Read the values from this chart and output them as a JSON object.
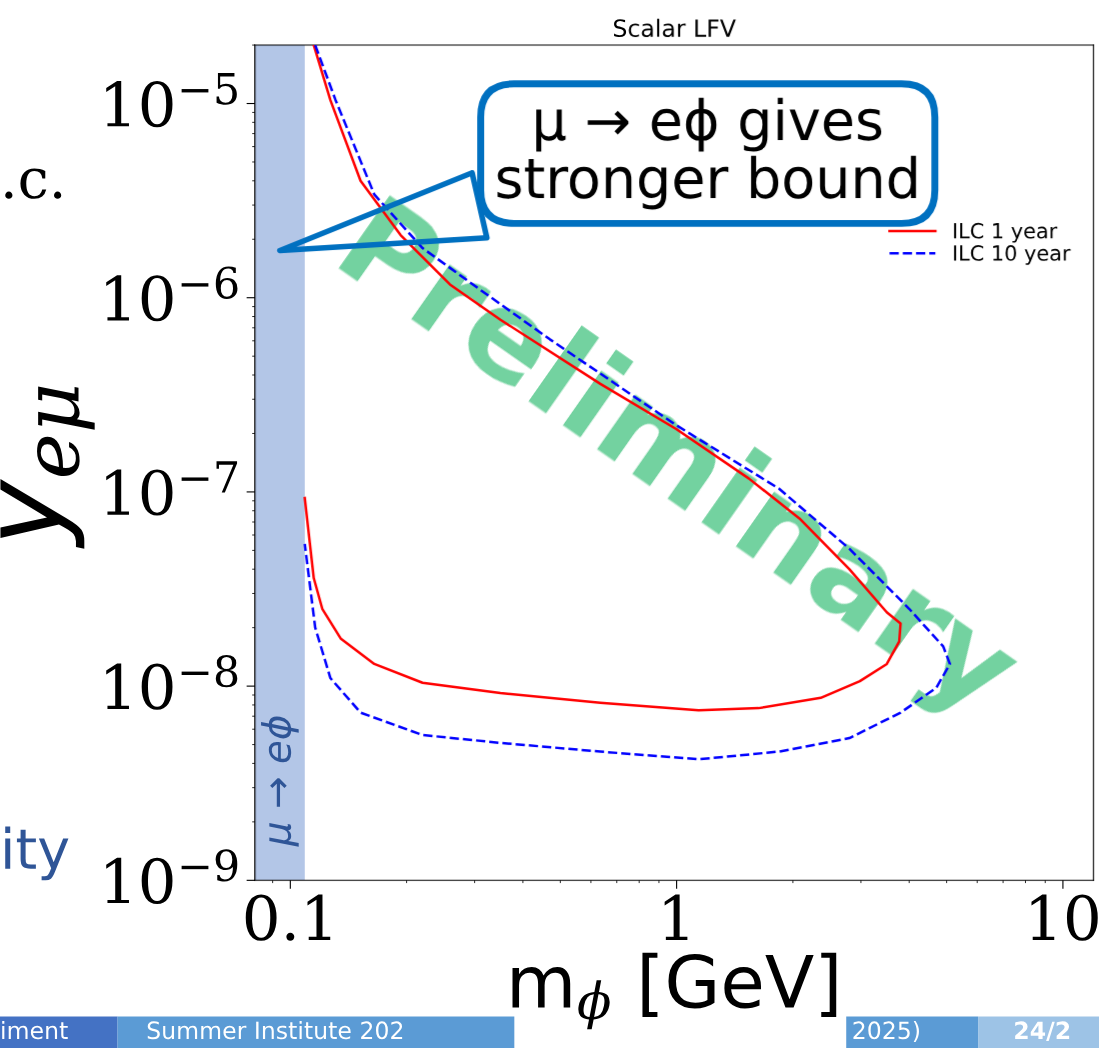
{
  "chart_data": {
    "type": "line",
    "title": "Scalar LFV",
    "xlabel": "m$_{ϕ}$ [GeV]",
    "ylabel": "y$_{eμ}$",
    "log": "xy",
    "xlim": [
      0.081,
      12
    ],
    "ylim": [
      1e-09,
      2e-05
    ],
    "xticks": [
      0.1,
      1,
      10
    ],
    "yticks": [
      {
        "value": 1e-09,
        "label": "10$^{−9}$"
      },
      {
        "value": 1e-08,
        "label": "10$^{−8}$"
      },
      {
        "value": 1e-07,
        "label": "10$^{−7}$"
      },
      {
        "value": 1e-06,
        "label": "10$^{−6}$"
      },
      {
        "value": 1e-05,
        "label": "10$^{−5}$"
      }
    ],
    "grid": false,
    "legend": "top right",
    "bands": [
      {
        "axis": "x",
        "from": 0.081,
        "to": 0.109,
        "label": "μ → eϕ",
        "color": "#b3c6e7"
      }
    ],
    "series": [
      {
        "name": "ILC 1 year",
        "color": "#ff0000",
        "line_style": "solid",
        "x": [
          0.115,
          0.127,
          0.152,
          0.193,
          0.259,
          0.35,
          0.635,
          1.0,
          1.54,
          2.08,
          2.8,
          3.5,
          3.8,
          3.77,
          3.5,
          2.98,
          2.36,
          1.63,
          1.14,
          0.635,
          0.35,
          0.22,
          0.165,
          0.135,
          0.121,
          0.115,
          0.109
        ],
        "values": [
          2e-05,
          1.04e-05,
          4e-06,
          2.1e-06,
          1.17e-06,
          7.7e-07,
          3.6e-07,
          2.1e-07,
          1.17e-07,
          7.3e-08,
          4e-08,
          2.4e-08,
          2.1e-08,
          1.7e-08,
          1.3e-08,
          1.06e-08,
          8.7e-09,
          7.7e-09,
          7.5e-09,
          8.2e-09,
          9.2e-09,
          1.04e-08,
          1.3e-08,
          1.76e-08,
          2.5e-08,
          3.6e-08,
          9.3e-08
        ]
      },
      {
        "name": "ILC 10 year",
        "color": "#0000ff",
        "line_style": "dashed",
        "x": [
          0.116,
          0.131,
          0.165,
          0.22,
          0.31,
          0.47,
          1.0,
          1.84,
          2.8,
          4.0,
          4.9,
          5.1,
          4.7,
          3.8,
          2.8,
          1.84,
          1.14,
          0.635,
          0.35,
          0.22,
          0.152,
          0.127,
          0.116,
          0.109
        ],
        "values": [
          2e-05,
          1.04e-05,
          3.4e-06,
          1.8e-06,
          1.1e-06,
          6.1e-07,
          2.2e-07,
          1.04e-07,
          5.1e-08,
          2.5e-08,
          1.6e-08,
          1.3e-08,
          9.8e-09,
          7.3e-09,
          5.4e-09,
          4.6e-09,
          4.2e-09,
          4.6e-09,
          5.1e-09,
          5.6e-09,
          7.3e-09,
          1.1e-08,
          2e-08,
          5.4e-08
        ]
      }
    ],
    "annotations": [
      "μ → eϕ gives\nstronger bound",
      "Preliminary",
      ".c.",
      "ity",
      "iment",
      "Summer Institute 202",
      "2025)",
      "24/2"
    ]
  }
}
